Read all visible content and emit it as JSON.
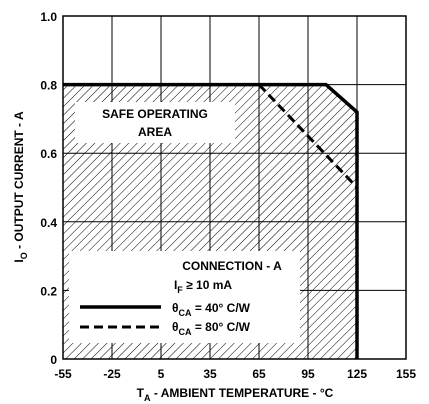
{
  "chart_data": {
    "type": "line",
    "xlabel": {
      "main": "T",
      "sub": "A",
      "rest": " - AMBIENT TEMPERATURE - °C"
    },
    "ylabel": {
      "main": "I",
      "sub": "O",
      "rest": " - OUTPUT CURRENT - A"
    },
    "xlim": [
      -55,
      155
    ],
    "ylim": [
      0,
      1.0
    ],
    "x_ticks": [
      -55,
      -25,
      5,
      35,
      65,
      95,
      125,
      155
    ],
    "x_tick_labels": [
      "-55",
      "-25",
      "5",
      "35",
      "65",
      "95",
      "125",
      "155"
    ],
    "y_ticks": [
      0,
      0.2,
      0.4,
      0.6,
      0.8,
      1.0
    ],
    "y_tick_labels": [
      "0",
      "0.2",
      "0.4",
      "0.6",
      "0.8",
      "1.0"
    ],
    "grid": true,
    "series": [
      {
        "name": "θCA = 40° C/W",
        "style": "solid",
        "x": [
          -55,
          106,
          125,
          125
        ],
        "y": [
          0.8,
          0.8,
          0.72,
          0
        ]
      },
      {
        "name": "θCA = 80° C/W",
        "style": "dashed",
        "x": [
          65,
          125
        ],
        "y": [
          0.8,
          0.5
        ]
      }
    ],
    "safe_area": {
      "x": [
        -55,
        106,
        125,
        125,
        -55
      ],
      "y": [
        0.8,
        0.8,
        0.72,
        0,
        0
      ]
    },
    "annotations": {
      "safe_area_line1": "SAFE OPERATING",
      "safe_area_line2": "AREA",
      "connection": "CONNECTION - A",
      "if_main": "I",
      "if_sub": "F",
      "if_rest": " ≥ 10 mA"
    },
    "legend_entries": [
      {
        "theta": "θ",
        "sub": "CA",
        "rest": " = 40° C/W",
        "style": "solid"
      },
      {
        "theta": "θ",
        "sub": "CA",
        "rest": " = 80° C/W",
        "style": "dashed"
      }
    ]
  }
}
